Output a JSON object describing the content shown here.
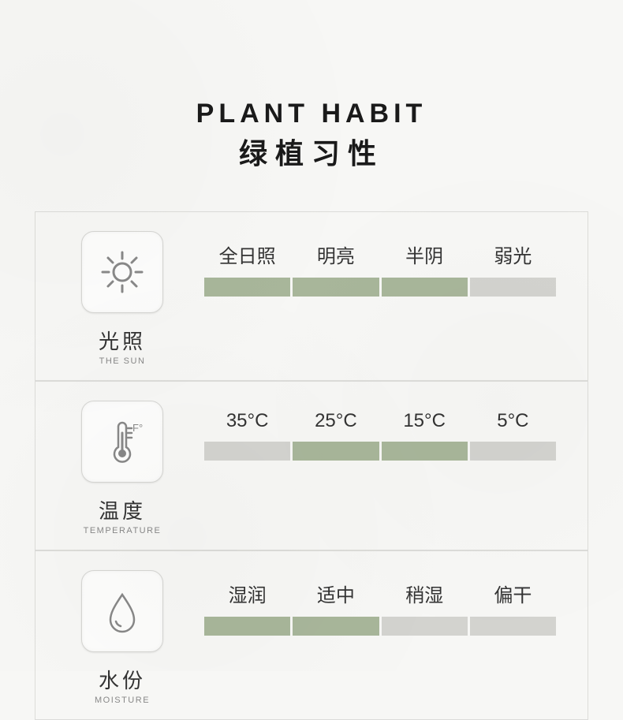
{
  "colors": {
    "bar_filled": "#a8b69a",
    "bar_empty": "#d3d3cf",
    "icon_stroke": "#888888"
  },
  "header": {
    "title_en": "PLANT HABIT",
    "title_cn": "绿植习性"
  },
  "rows": [
    {
      "id": "sun",
      "icon": "sun",
      "label_cn": "光照",
      "label_en": "THE SUN",
      "segments": [
        {
          "label": "全日照",
          "filled": true
        },
        {
          "label": "明亮",
          "filled": true
        },
        {
          "label": "半阴",
          "filled": true
        },
        {
          "label": "弱光",
          "filled": false
        }
      ]
    },
    {
      "id": "temperature",
      "icon": "thermometer",
      "label_cn": "温度",
      "label_en": "TEMPERATURE",
      "segments": [
        {
          "label": "35°C",
          "filled": false
        },
        {
          "label": "25°C",
          "filled": true
        },
        {
          "label": "15°C",
          "filled": true
        },
        {
          "label": "5°C",
          "filled": false
        }
      ]
    },
    {
      "id": "moisture",
      "icon": "water-drop",
      "label_cn": "水份",
      "label_en": "MOISTURE",
      "segments": [
        {
          "label": "湿润",
          "filled": true
        },
        {
          "label": "适中",
          "filled": true
        },
        {
          "label": "稍湿",
          "filled": false
        },
        {
          "label": "偏干",
          "filled": false
        }
      ]
    }
  ]
}
